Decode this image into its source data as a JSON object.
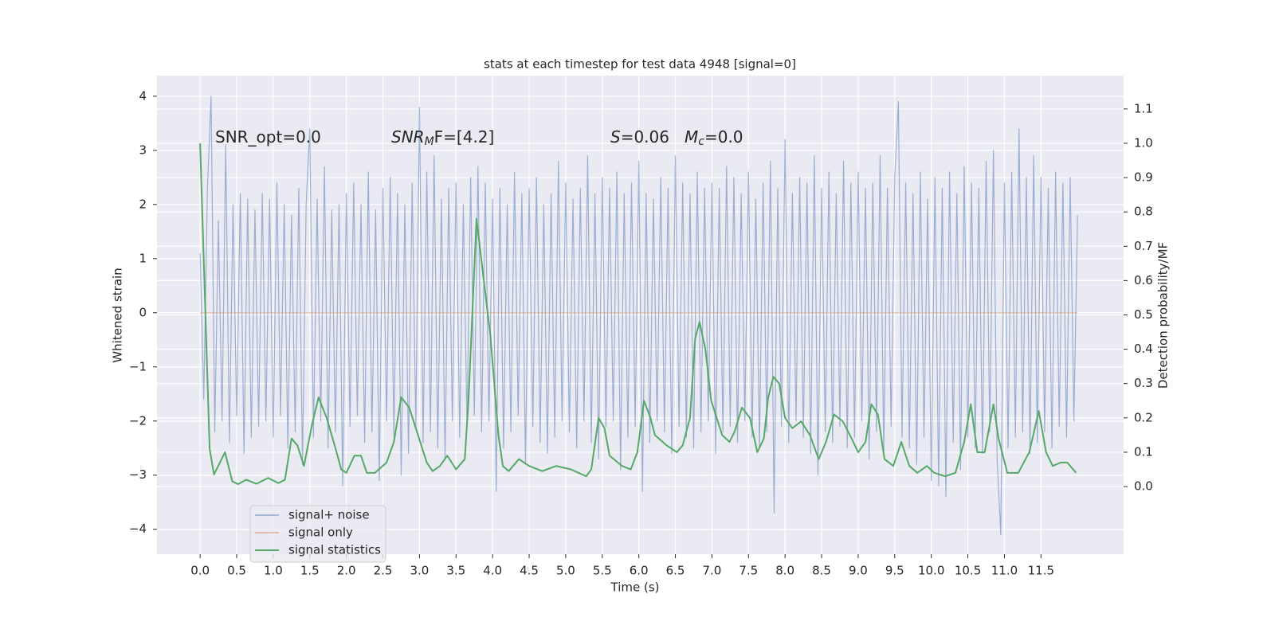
{
  "chart_data": {
    "type": "line",
    "title": "stats at each timestep for test data 4948 [signal=0]",
    "xlabel": "Time (s)",
    "ylabel": "Whitened strain",
    "y2label": "Detection probability/MF",
    "annotations": [
      {
        "parts": [
          "SNR_opt=0.0"
        ]
      },
      {
        "parts": [
          "SNR",
          "M",
          "F=[4.2]"
        ]
      },
      {
        "parts": [
          "S",
          "=0.06"
        ]
      },
      {
        "parts": [
          "M",
          "c",
          "=0.0"
        ]
      }
    ],
    "xlim": [
      -0.59,
      12.63
    ],
    "xticks": [
      {
        "value": 0,
        "label": "0.0"
      },
      0.5,
      {
        "value": 1,
        "label": "1.0"
      },
      1.5,
      {
        "value": 2,
        "label": "2.0"
      },
      2.5,
      {
        "value": 3,
        "label": "3.0"
      },
      3.5,
      {
        "value": 4,
        "label": "4.0"
      },
      4.5,
      {
        "value": 5,
        "label": "5.0"
      },
      5.5,
      {
        "value": 6,
        "label": "6.0"
      },
      6.5,
      {
        "value": 7,
        "label": "7.0"
      },
      7.5,
      {
        "value": 8,
        "label": "8.0"
      },
      8.5,
      {
        "value": 9,
        "label": "9.0"
      },
      9.5,
      {
        "value": 10,
        "label": "10.0"
      },
      10.5,
      {
        "value": 11,
        "label": "11.0"
      },
      11.5
    ],
    "ylim": [
      -4.46,
      4.38
    ],
    "yticks": [
      {
        "value": -4,
        "label": "−4"
      },
      {
        "value": -3,
        "label": "−3"
      },
      {
        "value": -2,
        "label": "−2"
      },
      {
        "value": -1,
        "label": "−1"
      },
      0,
      1,
      2,
      3,
      4
    ],
    "y2lim": [
      -0.197,
      1.197
    ],
    "y2ticks": [
      {
        "value": 0,
        "label": "0.0"
      },
      0.1,
      0.2,
      0.3,
      0.4,
      0.5,
      0.6,
      0.7,
      0.8,
      0.9,
      {
        "value": 1,
        "label": "1.0"
      },
      1.1
    ],
    "grid": true,
    "series": [
      {
        "name": "signal+ noise",
        "color": "#4c72b0",
        "x": [
          0,
          0.05,
          0.1,
          0.15,
          0.2,
          0.25,
          0.3,
          0.35,
          0.4,
          0.45,
          0.5,
          0.55,
          0.6,
          0.65,
          0.7,
          0.75,
          0.8,
          0.85,
          0.9,
          0.95,
          1,
          1.05,
          1.1,
          1.15,
          1.2,
          1.25,
          1.3,
          1.35,
          1.4,
          1.45,
          1.5,
          1.55,
          1.6,
          1.65,
          1.7,
          1.75,
          1.8,
          1.85,
          1.9,
          1.95,
          2,
          2.05,
          2.1,
          2.15,
          2.2,
          2.25,
          2.3,
          2.35,
          2.4,
          2.45,
          2.5,
          2.55,
          2.6,
          2.65,
          2.7,
          2.75,
          2.8,
          2.85,
          2.9,
          2.95,
          3,
          3.05,
          3.1,
          3.15,
          3.2,
          3.25,
          3.3,
          3.35,
          3.4,
          3.45,
          3.5,
          3.55,
          3.6,
          3.65,
          3.7,
          3.75,
          3.8,
          3.85,
          3.9,
          3.95,
          4,
          4.05,
          4.1,
          4.15,
          4.2,
          4.25,
          4.3,
          4.35,
          4.4,
          4.45,
          4.5,
          4.55,
          4.6,
          4.65,
          4.7,
          4.75,
          4.8,
          4.85,
          4.9,
          4.95,
          5,
          5.05,
          5.1,
          5.15,
          5.2,
          5.25,
          5.3,
          5.35,
          5.4,
          5.45,
          5.5,
          5.55,
          5.6,
          5.65,
          5.7,
          5.75,
          5.8,
          5.85,
          5.9,
          5.95,
          6,
          6.05,
          6.1,
          6.15,
          6.2,
          6.25,
          6.3,
          6.35,
          6.4,
          6.45,
          6.5,
          6.55,
          6.6,
          6.65,
          6.7,
          6.75,
          6.8,
          6.85,
          6.9,
          6.95,
          7,
          7.05,
          7.1,
          7.15,
          7.2,
          7.25,
          7.3,
          7.35,
          7.4,
          7.45,
          7.5,
          7.55,
          7.6,
          7.65,
          7.7,
          7.75,
          7.8,
          7.85,
          7.9,
          7.95,
          8,
          8.05,
          8.1,
          8.15,
          8.2,
          8.25,
          8.3,
          8.35,
          8.4,
          8.45,
          8.5,
          8.55,
          8.6,
          8.65,
          8.7,
          8.75,
          8.8,
          8.85,
          8.9,
          8.95,
          9,
          9.05,
          9.1,
          9.15,
          9.2,
          9.25,
          9.3,
          9.35,
          9.4,
          9.45,
          9.5,
          9.55,
          9.6,
          9.65,
          9.7,
          9.75,
          9.8,
          9.85,
          9.9,
          9.95,
          10,
          10.05,
          10.1,
          10.15,
          10.2,
          10.25,
          10.3,
          10.35,
          10.4,
          10.45,
          10.5,
          10.55,
          10.6,
          10.65,
          10.7,
          10.75,
          10.8,
          10.85,
          10.9,
          10.95,
          11,
          11.05,
          11.1,
          11.15,
          11.2,
          11.25,
          11.3,
          11.35,
          11.4,
          11.45,
          11.5,
          11.55,
          11.6,
          11.65,
          11.7,
          11.75,
          11.8,
          11.85,
          11.9,
          11.95,
          12
        ],
        "values": [
          1.1,
          -1.6,
          2.3,
          4.0,
          -2.2,
          1.7,
          -2.0,
          3.1,
          -2.4,
          2.0,
          -1.9,
          2.2,
          -2.6,
          2.1,
          -2.3,
          1.9,
          -2.1,
          2.2,
          -2.0,
          2.1,
          -2.3,
          2.4,
          -1.9,
          2.0,
          -2.5,
          1.8,
          -2.2,
          2.3,
          -2.8,
          2.0,
          3.4,
          -2.3,
          2.1,
          -2.0,
          2.7,
          -2.5,
          1.9,
          -2.2,
          2.0,
          -3.2,
          2.2,
          -2.1,
          2.4,
          -1.9,
          2.0,
          -2.4,
          2.6,
          -2.2,
          1.9,
          -3.1,
          2.3,
          -2.0,
          2.5,
          -2.3,
          2.2,
          -3.0,
          2.0,
          -2.6,
          2.4,
          -2.1,
          3.8,
          -2.4,
          2.6,
          -2.2,
          2.9,
          -2.5,
          2.1,
          -2.7,
          2.3,
          -2.0,
          2.4,
          -2.3,
          2.0,
          -2.1,
          2.5,
          -1.9,
          2.7,
          -2.2,
          2.4,
          -2.0,
          2.1,
          -3.3,
          2.3,
          -2.5,
          2.0,
          -2.2,
          2.6,
          -1.9,
          2.2,
          -2.8,
          2.3,
          -2.1,
          2.5,
          -2.4,
          2.0,
          -2.6,
          2.2,
          -2.3,
          2.8,
          -2.0,
          2.4,
          -2.2,
          2.1,
          -2.5,
          2.3,
          -2.0,
          2.9,
          -2.4,
          2.2,
          -2.7,
          2.5,
          -2.1,
          2.3,
          -2.0,
          2.6,
          -2.9,
          2.2,
          -2.3,
          2.4,
          -2.1,
          2.8,
          -3.3,
          2.2,
          -2.4,
          2.1,
          -2.0,
          2.5,
          -2.2,
          2.3,
          -2.6,
          2.9,
          -2.1,
          2.4,
          -2.3,
          2.2,
          -2.5,
          2.6,
          -2.2,
          2.3,
          -2.0,
          2.4,
          -2.6,
          2.3,
          -2.2,
          2.7,
          -2.1,
          2.5,
          -2.4,
          2.2,
          -2.0,
          2.6,
          -2.3,
          2.1,
          -2.5,
          2.4,
          -2.2,
          2.8,
          -3.7,
          2.3,
          -2.1,
          3.2,
          -2.4,
          2.2,
          -2.0,
          2.5,
          -2.3,
          2.4,
          -2.6,
          2.9,
          -3.0,
          2.3,
          -2.2,
          2.6,
          -2.4,
          2.2,
          -2.1,
          2.8,
          -2.5,
          2.4,
          -2.3,
          2.6,
          -2.0,
          2.3,
          -2.7,
          2.4,
          -2.2,
          2.9,
          -2.6,
          2.3,
          -2.1,
          2.5,
          3.9,
          -2.3,
          2.4,
          -2.5,
          2.2,
          -2.8,
          2.6,
          -2.3,
          2.1,
          -3.1,
          2.5,
          -3.2,
          2.3,
          -3.4,
          2.6,
          -2.4,
          2.2,
          -2.9,
          2.7,
          -2.3,
          2.4,
          -2.5,
          2.3,
          -2.6,
          2.8,
          -2.2,
          3.0,
          -2.7,
          -4.1,
          2.4,
          -2.5,
          2.6,
          -2.3,
          3.4,
          -2.2,
          2.5,
          -2.6,
          2.9,
          -2.4,
          2.5,
          -2.2,
          2.3,
          -2.5,
          2.6,
          -2.1,
          2.4,
          -2.3,
          2.5,
          -2.0,
          1.8
        ]
      },
      {
        "name": "signal only",
        "color": "#dd8452",
        "x": [
          0,
          12
        ],
        "values": [
          0,
          0
        ]
      },
      {
        "name": "signal statistics",
        "color": "#55a868",
        "axis": "y2",
        "x": [
          0,
          0.13,
          0.19,
          0.34,
          0.44,
          0.52,
          0.63,
          0.77,
          0.93,
          1.07,
          1.16,
          1.25,
          1.33,
          1.42,
          1.53,
          1.62,
          1.73,
          1.84,
          1.93,
          2.0,
          2.11,
          2.2,
          2.28,
          2.39,
          2.55,
          2.65,
          2.75,
          2.86,
          2.98,
          3.1,
          3.18,
          3.28,
          3.38,
          3.5,
          3.62,
          3.67,
          3.78,
          3.88,
          3.97,
          4.08,
          4.14,
          4.22,
          4.36,
          4.5,
          4.68,
          4.87,
          5.07,
          5.28,
          5.35,
          5.45,
          5.53,
          5.6,
          5.77,
          5.89,
          5.98,
          6.07,
          6.16,
          6.22,
          6.38,
          6.52,
          6.6,
          6.7,
          6.77,
          6.83,
          6.91,
          6.99,
          7.14,
          7.24,
          7.31,
          7.41,
          7.52,
          7.62,
          7.71,
          7.77,
          7.84,
          7.92,
          8.0,
          8.1,
          8.22,
          8.34,
          8.46,
          8.56,
          8.67,
          8.79,
          8.91,
          9.0,
          9.1,
          9.18,
          9.27,
          9.36,
          9.48,
          9.59,
          9.7,
          9.81,
          9.94,
          10.04,
          10.19,
          10.33,
          10.45,
          10.54,
          10.63,
          10.73,
          10.85,
          10.92,
          11.04,
          11.19,
          11.34,
          11.47,
          11.57,
          11.66,
          11.77,
          11.86,
          11.98
        ],
        "values": [
          1.0,
          0.11,
          0.035,
          0.1,
          0.015,
          0.007,
          0.02,
          0.008,
          0.025,
          0.01,
          0.02,
          0.14,
          0.12,
          0.06,
          0.18,
          0.26,
          0.2,
          0.12,
          0.05,
          0.04,
          0.09,
          0.09,
          0.04,
          0.04,
          0.07,
          0.13,
          0.26,
          0.23,
          0.15,
          0.07,
          0.045,
          0.06,
          0.09,
          0.05,
          0.08,
          0.25,
          0.78,
          0.6,
          0.44,
          0.15,
          0.06,
          0.045,
          0.08,
          0.06,
          0.045,
          0.06,
          0.05,
          0.03,
          0.05,
          0.2,
          0.17,
          0.09,
          0.06,
          0.05,
          0.1,
          0.25,
          0.2,
          0.15,
          0.12,
          0.1,
          0.12,
          0.2,
          0.43,
          0.48,
          0.4,
          0.25,
          0.15,
          0.13,
          0.16,
          0.23,
          0.2,
          0.1,
          0.14,
          0.26,
          0.32,
          0.3,
          0.2,
          0.17,
          0.19,
          0.15,
          0.08,
          0.13,
          0.21,
          0.19,
          0.14,
          0.1,
          0.13,
          0.24,
          0.21,
          0.08,
          0.06,
          0.13,
          0.06,
          0.04,
          0.06,
          0.04,
          0.03,
          0.04,
          0.13,
          0.24,
          0.1,
          0.1,
          0.24,
          0.14,
          0.04,
          0.04,
          0.1,
          0.22,
          0.1,
          0.06,
          0.07,
          0.07,
          0.04
        ]
      }
    ]
  }
}
